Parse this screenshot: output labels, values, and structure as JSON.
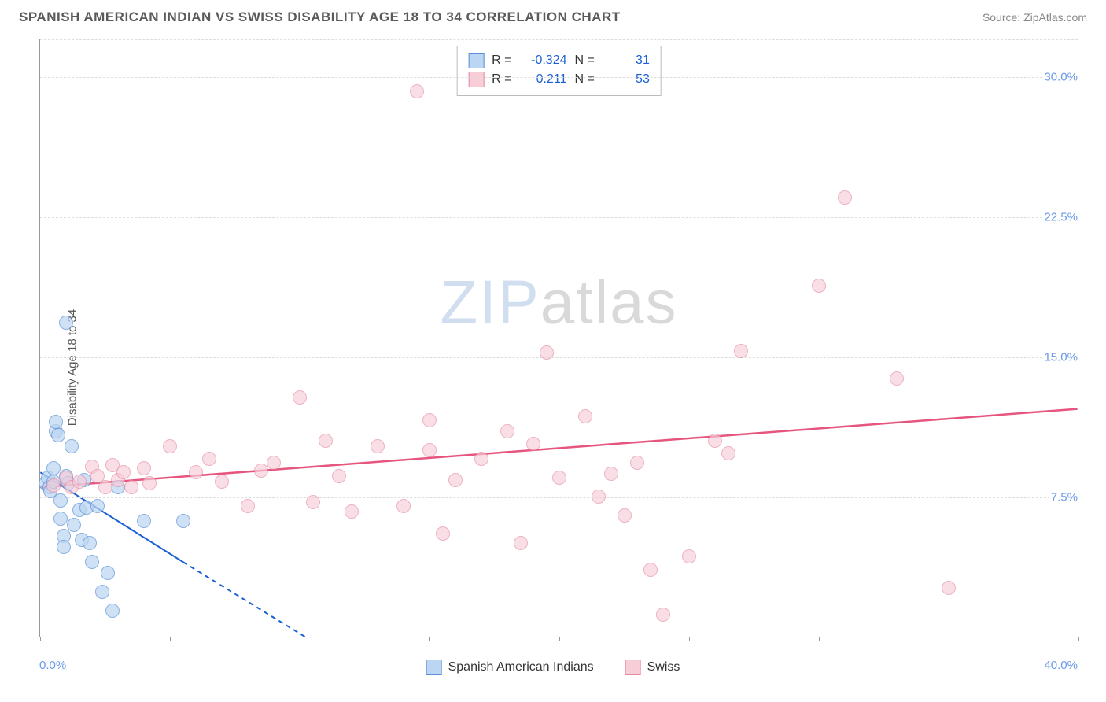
{
  "header": {
    "title": "SPANISH AMERICAN INDIAN VS SWISS DISABILITY AGE 18 TO 34 CORRELATION CHART",
    "source_prefix": "Source: ",
    "source_name": "ZipAtlas.com"
  },
  "chart": {
    "type": "scatter",
    "y_axis_label": "Disability Age 18 to 34",
    "xlim": [
      0,
      40
    ],
    "ylim": [
      0,
      32
    ],
    "x_origin_label": "0.0%",
    "x_max_label": "40.0%",
    "y_ticks": [
      {
        "v": 7.5,
        "label": "7.5%"
      },
      {
        "v": 15.0,
        "label": "15.0%"
      },
      {
        "v": 22.5,
        "label": "22.5%"
      },
      {
        "v": 30.0,
        "label": "30.0%"
      }
    ],
    "x_tick_positions": [
      0,
      5,
      10,
      15,
      20,
      25,
      30,
      35,
      40
    ],
    "background_color": "#ffffff",
    "grid_color": "#dddddd",
    "axis_color": "#999999",
    "marker_radius": 9,
    "marker_border_width": 1.5,
    "watermark": {
      "zip": "ZIP",
      "atlas": "atlas"
    },
    "series": [
      {
        "key": "sai",
        "name": "Spanish American Indians",
        "fill": "#bcd5f2",
        "stroke": "#5b8fd6",
        "fill_opacity": 0.7,
        "trend": {
          "x1": 0,
          "y1": 8.8,
          "x2_solid": 5.5,
          "y2_solid": 4.0,
          "x2_dash": 10.2,
          "y2_dash": 0,
          "stroke": "#1a5fd6",
          "width": 2,
          "dash": "6,5"
        },
        "stats": {
          "R": "-0.324",
          "N": "31"
        },
        "points": [
          [
            0.2,
            8.2
          ],
          [
            0.3,
            8.5
          ],
          [
            0.35,
            8.0
          ],
          [
            0.4,
            7.8
          ],
          [
            0.5,
            9.0
          ],
          [
            0.5,
            8.3
          ],
          [
            0.6,
            11.0
          ],
          [
            0.6,
            11.5
          ],
          [
            0.7,
            10.8
          ],
          [
            0.8,
            7.3
          ],
          [
            0.8,
            6.3
          ],
          [
            0.9,
            5.4
          ],
          [
            0.9,
            4.8
          ],
          [
            1.0,
            8.6
          ],
          [
            1.0,
            16.8
          ],
          [
            1.1,
            8.2
          ],
          [
            1.2,
            10.2
          ],
          [
            1.3,
            6.0
          ],
          [
            1.5,
            6.8
          ],
          [
            1.6,
            5.2
          ],
          [
            1.7,
            8.4
          ],
          [
            1.8,
            6.9
          ],
          [
            1.9,
            5.0
          ],
          [
            2.0,
            4.0
          ],
          [
            2.2,
            7.0
          ],
          [
            2.4,
            2.4
          ],
          [
            2.6,
            3.4
          ],
          [
            2.8,
            1.4
          ],
          [
            3.0,
            8.0
          ],
          [
            4.0,
            6.2
          ],
          [
            5.5,
            6.2
          ]
        ]
      },
      {
        "key": "swiss",
        "name": "Swiss",
        "fill": "#f7cdd8",
        "stroke": "#e38aa2",
        "fill_opacity": 0.65,
        "trend": {
          "x1": 0,
          "y1": 8.0,
          "x2_solid": 40,
          "y2_solid": 12.2,
          "stroke": "#e6557e",
          "width": 2.5
        },
        "stats": {
          "R": "0.211",
          "N": "53"
        },
        "points": [
          [
            0.5,
            8.1
          ],
          [
            1.0,
            8.5
          ],
          [
            1.2,
            8.0
          ],
          [
            1.5,
            8.3
          ],
          [
            2.0,
            9.1
          ],
          [
            2.2,
            8.6
          ],
          [
            2.5,
            8.0
          ],
          [
            2.8,
            9.2
          ],
          [
            3.0,
            8.4
          ],
          [
            3.2,
            8.8
          ],
          [
            3.5,
            8.0
          ],
          [
            4.0,
            9.0
          ],
          [
            4.2,
            8.2
          ],
          [
            5.0,
            10.2
          ],
          [
            6.0,
            8.8
          ],
          [
            6.5,
            9.5
          ],
          [
            7.0,
            8.3
          ],
          [
            8.0,
            7.0
          ],
          [
            8.5,
            8.9
          ],
          [
            9.0,
            9.3
          ],
          [
            10.0,
            12.8
          ],
          [
            10.5,
            7.2
          ],
          [
            11.0,
            10.5
          ],
          [
            11.5,
            8.6
          ],
          [
            12.0,
            6.7
          ],
          [
            13.0,
            10.2
          ],
          [
            14.0,
            7.0
          ],
          [
            14.5,
            29.2
          ],
          [
            15.0,
            11.6
          ],
          [
            15.0,
            10.0
          ],
          [
            15.5,
            5.5
          ],
          [
            16.0,
            8.4
          ],
          [
            17.0,
            9.5
          ],
          [
            18.0,
            11.0
          ],
          [
            18.5,
            5.0
          ],
          [
            19.0,
            10.3
          ],
          [
            19.5,
            15.2
          ],
          [
            20.0,
            8.5
          ],
          [
            21.0,
            11.8
          ],
          [
            21.5,
            7.5
          ],
          [
            22.0,
            8.7
          ],
          [
            22.5,
            6.5
          ],
          [
            23.0,
            9.3
          ],
          [
            23.5,
            3.6
          ],
          [
            24.0,
            1.2
          ],
          [
            25.0,
            4.3
          ],
          [
            26.0,
            10.5
          ],
          [
            26.5,
            9.8
          ],
          [
            27.0,
            15.3
          ],
          [
            30.0,
            18.8
          ],
          [
            31.0,
            23.5
          ],
          [
            33.0,
            13.8
          ],
          [
            35.0,
            2.6
          ]
        ]
      }
    ],
    "stats_labels": {
      "R": "R =",
      "N": "N ="
    }
  },
  "legend_bottom": [
    {
      "series": "sai"
    },
    {
      "series": "swiss"
    }
  ]
}
